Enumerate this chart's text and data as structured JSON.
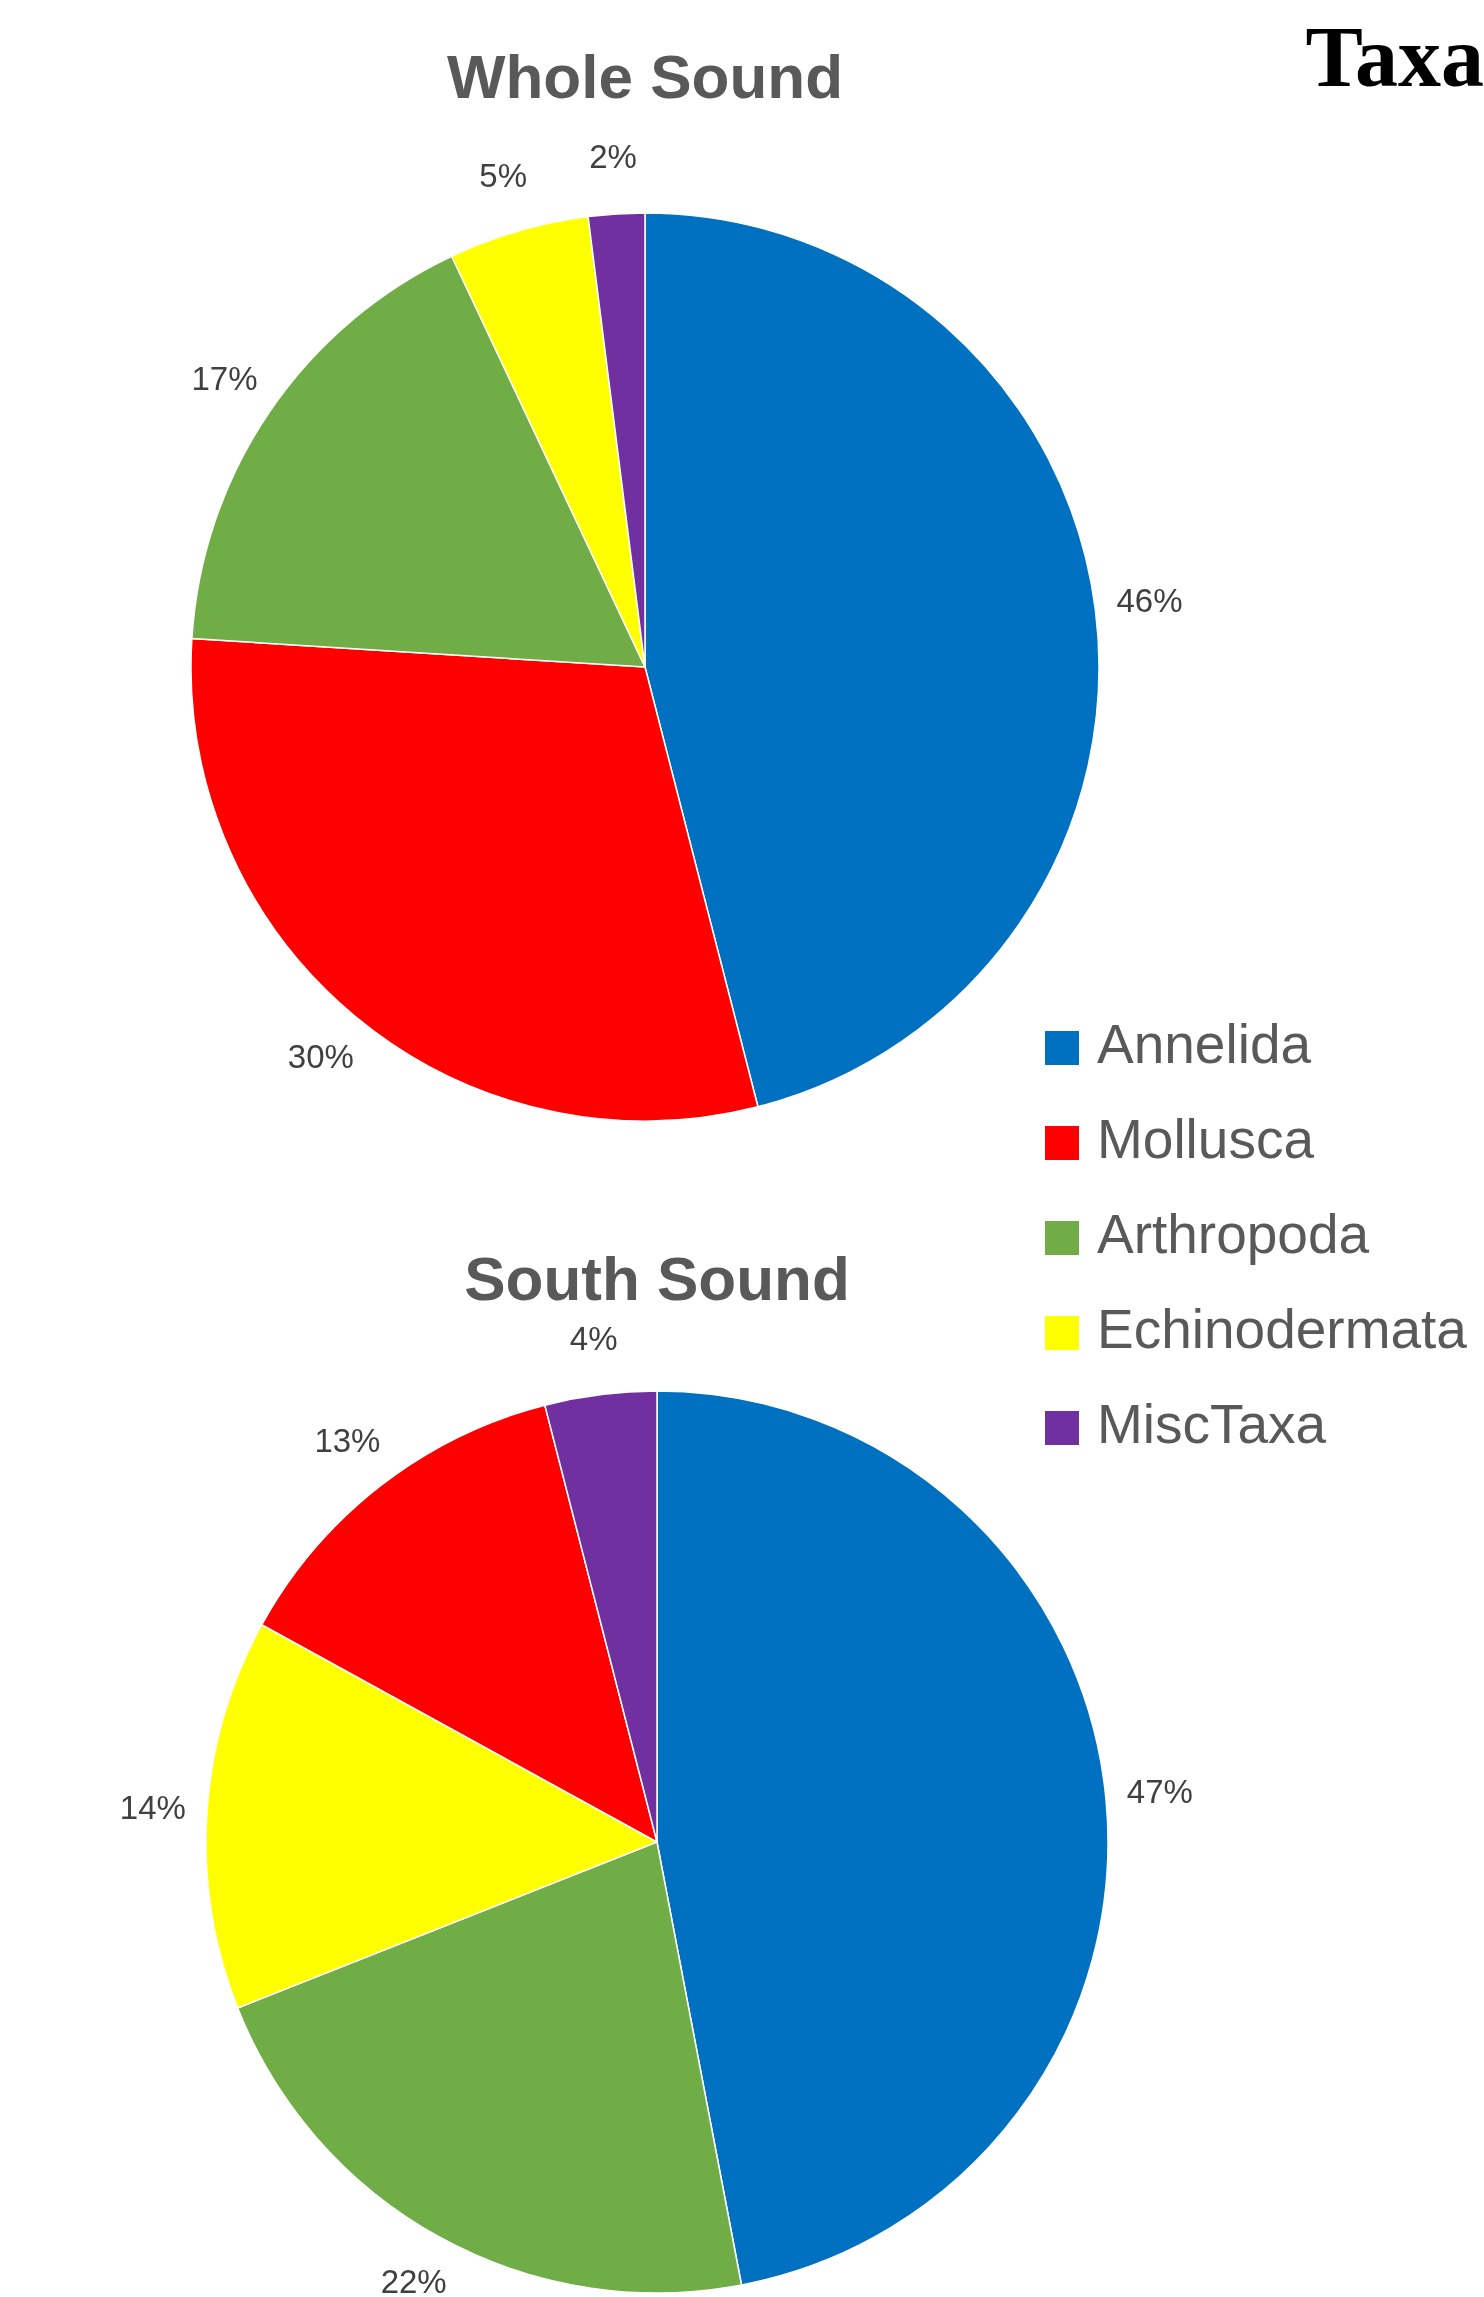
{
  "chart_data": [
    {
      "type": "pie",
      "title": "Whole Sound",
      "annotations": [
        "Taxa"
      ],
      "categories": [
        "Annelida",
        "Mollusca",
        "Arthropoda",
        "Echinodermata",
        "MiscTaxa"
      ],
      "values": [
        46,
        30,
        17,
        5,
        2
      ],
      "colors": [
        "#0070c0",
        "#ff0000",
        "#70ad47",
        "#ffff00",
        "#7030a0"
      ],
      "value_labels": [
        "46%",
        "30%",
        "17%",
        "5%",
        "2%"
      ],
      "legend": "right"
    },
    {
      "type": "pie",
      "title": "South Sound",
      "categories": [
        null,
        null,
        null,
        null,
        null
      ],
      "values": [
        47,
        22,
        14,
        13,
        4
      ],
      "colors": [
        "#0070c0",
        "#70ad47",
        "#ffff00",
        "#ff0000",
        "#7030a0"
      ],
      "value_labels": [
        "47%",
        "22%",
        "14%",
        "13%",
        "4%"
      ],
      "legend": false
    }
  ]
}
